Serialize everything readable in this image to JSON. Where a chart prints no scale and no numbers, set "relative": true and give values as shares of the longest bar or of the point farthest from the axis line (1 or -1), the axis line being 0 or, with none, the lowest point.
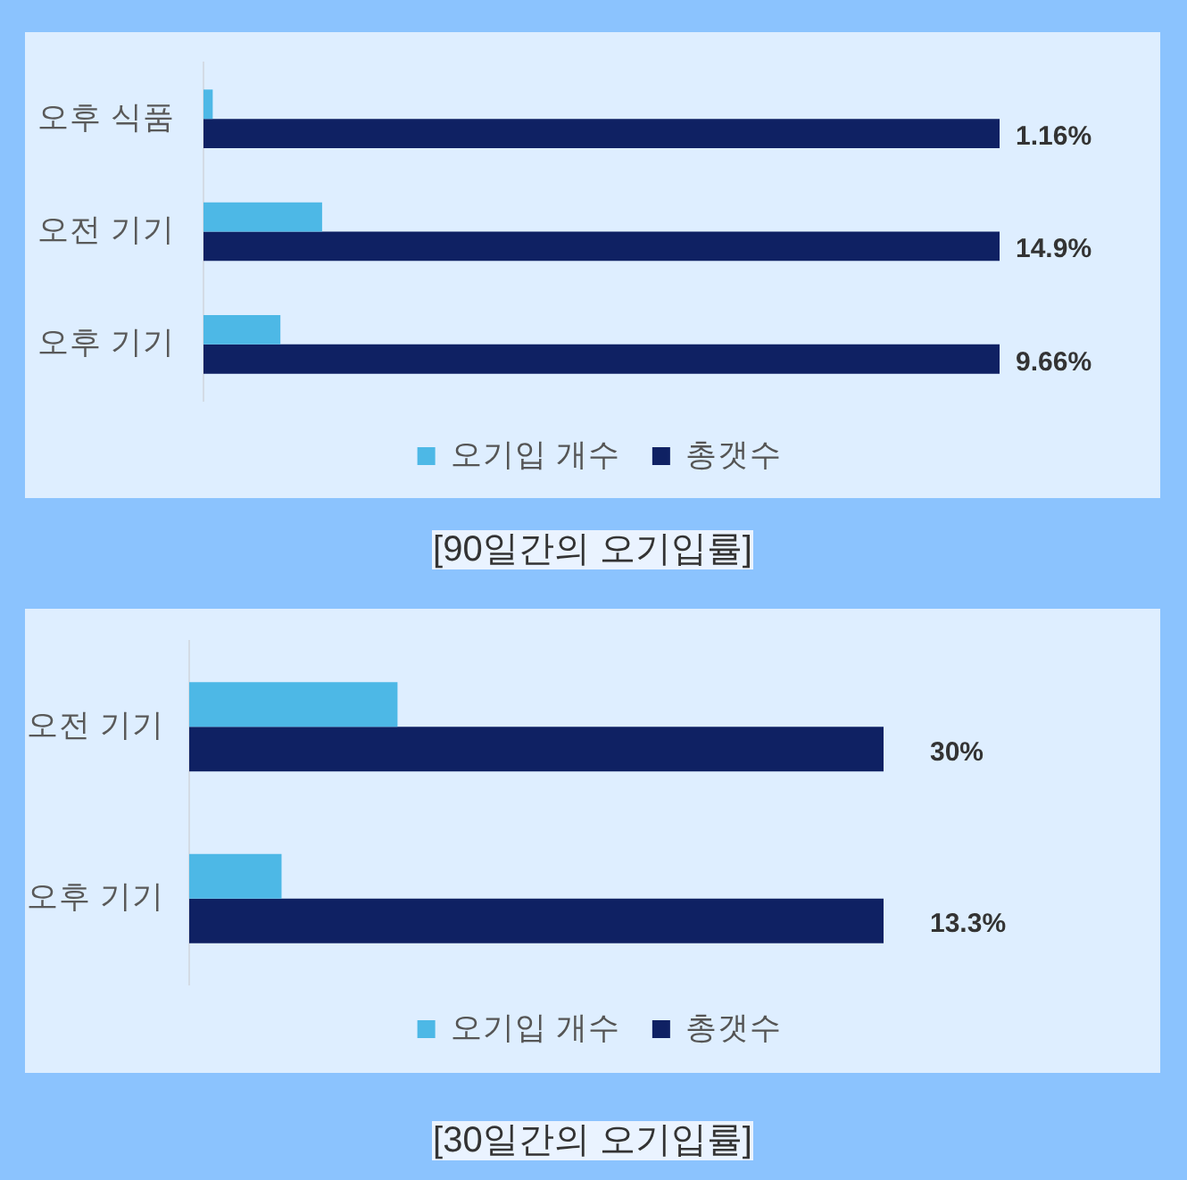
{
  "chart_data": [
    {
      "type": "bar",
      "orientation": "horizontal",
      "relative": true,
      "title": "[90일간의 오기입률]",
      "categories": [
        "오후 식품",
        "오전 기기",
        "오후 기기"
      ],
      "series": [
        {
          "name": "오기입 개수",
          "color": "#4db8e6",
          "values": [
            0.0116,
            0.149,
            0.0966
          ]
        },
        {
          "name": "총갯수",
          "color": "#0f2163",
          "values": [
            1,
            1,
            1
          ]
        }
      ],
      "annotations": [
        "1.16%",
        "14.9%",
        "9.66%"
      ],
      "legend": "bottom"
    },
    {
      "type": "bar",
      "orientation": "horizontal",
      "relative": true,
      "title": "[30일간의 오기입률]",
      "categories": [
        "오전 기기",
        "오후 기기"
      ],
      "series": [
        {
          "name": "오기입 개수",
          "color": "#4db8e6",
          "values": [
            0.3,
            0.133
          ]
        },
        {
          "name": "총갯수",
          "color": "#0f2163",
          "values": [
            1,
            1
          ]
        }
      ],
      "annotations": [
        "30%",
        "13.3%"
      ],
      "legend": "bottom"
    }
  ]
}
